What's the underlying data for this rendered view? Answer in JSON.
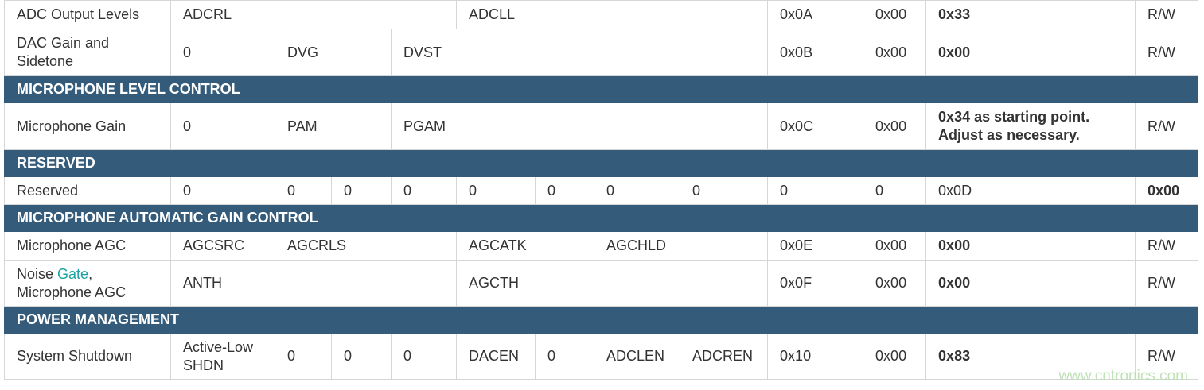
{
  "colors": {
    "section_header_bg": "#345b7a",
    "link": "#1aa3a3",
    "border": "#d6d6d6"
  },
  "rows": [
    {
      "type": "data",
      "h": 37,
      "cells": [
        {
          "t": "ADC Output Levels"
        },
        {
          "t": "ADCRL",
          "s": 4
        },
        {
          "t": "ADCLL",
          "s": 4
        },
        {
          "t": "0x0A"
        },
        {
          "t": "0x00"
        },
        {
          "t": "0x33",
          "b": true
        },
        {
          "t": "R/W"
        }
      ]
    },
    {
      "type": "data",
      "h": 60,
      "cells": [
        {
          "t": "DAC Gain and Sidetone"
        },
        {
          "t": "0"
        },
        {
          "t": "DVG",
          "s": 2
        },
        {
          "t": "DVST",
          "s": 5
        },
        {
          "t": "0x0B"
        },
        {
          "t": "0x00"
        },
        {
          "t": "0x00",
          "b": true
        },
        {
          "t": "R/W"
        }
      ]
    },
    {
      "type": "section",
      "title": "MICROPHONE LEVEL CONTROL"
    },
    {
      "type": "data",
      "h": 60,
      "cells": [
        {
          "t": "Microphone Gain"
        },
        {
          "t": "0"
        },
        {
          "t": "PAM",
          "s": 2
        },
        {
          "t": "PGAM",
          "s": 5
        },
        {
          "t": "0x0C"
        },
        {
          "t": "0x00"
        },
        {
          "t": "0x34 as starting point. Adjust as necessary.",
          "b": true
        },
        {
          "t": "R/W"
        }
      ]
    },
    {
      "type": "section",
      "title": "RESERVED"
    },
    {
      "type": "data",
      "h": 36,
      "cells": [
        {
          "t": "Reserved"
        },
        {
          "t": "0"
        },
        {
          "t": "0"
        },
        {
          "t": "0"
        },
        {
          "t": "0"
        },
        {
          "t": "0"
        },
        {
          "t": "0"
        },
        {
          "t": "0"
        },
        {
          "t": "0"
        },
        {
          "t": "0"
        },
        {
          "t": "0"
        },
        {
          "t": "0x0D"
        },
        {
          "t": "0x00",
          "b": true
        }
      ]
    },
    {
      "type": "section",
      "title": "MICROPHONE AUTOMATIC GAIN CONTROL"
    },
    {
      "type": "data",
      "h": 37,
      "cells": [
        {
          "t": "Microphone AGC"
        },
        {
          "t": "AGCSRC"
        },
        {
          "t": "AGCRLS",
          "s": 3
        },
        {
          "t": "AGCATK",
          "s": 2
        },
        {
          "t": "AGCHLD",
          "s": 2
        },
        {
          "t": "0x0E"
        },
        {
          "t": "0x00"
        },
        {
          "t": "0x00",
          "b": true
        },
        {
          "t": "R/W"
        }
      ]
    },
    {
      "type": "data",
      "h": 59,
      "cells": [
        {
          "t": "Noise ",
          "link": "Gate",
          "after": ", Microphone AGC"
        },
        {
          "t": "ANTH",
          "s": 4
        },
        {
          "t": "AGCTH",
          "s": 4
        },
        {
          "t": "0x0F"
        },
        {
          "t": "0x00"
        },
        {
          "t": "0x00",
          "b": true
        },
        {
          "t": "R/W"
        }
      ]
    },
    {
      "type": "section",
      "title": "POWER MANAGEMENT"
    },
    {
      "type": "data",
      "h": 59,
      "cells": [
        {
          "t": "System Shutdown"
        },
        {
          "t": "Active-Low SHDN"
        },
        {
          "t": "0"
        },
        {
          "t": "0"
        },
        {
          "t": "0"
        },
        {
          "t": "DACEN"
        },
        {
          "t": "0"
        },
        {
          "t": "ADCLEN"
        },
        {
          "t": "ADCREN"
        },
        {
          "t": "0x10"
        },
        {
          "t": "0x00"
        },
        {
          "t": "0x83",
          "b": true
        },
        {
          "t": "R/W"
        }
      ]
    }
  ],
  "watermark": "www.cntronics.com"
}
